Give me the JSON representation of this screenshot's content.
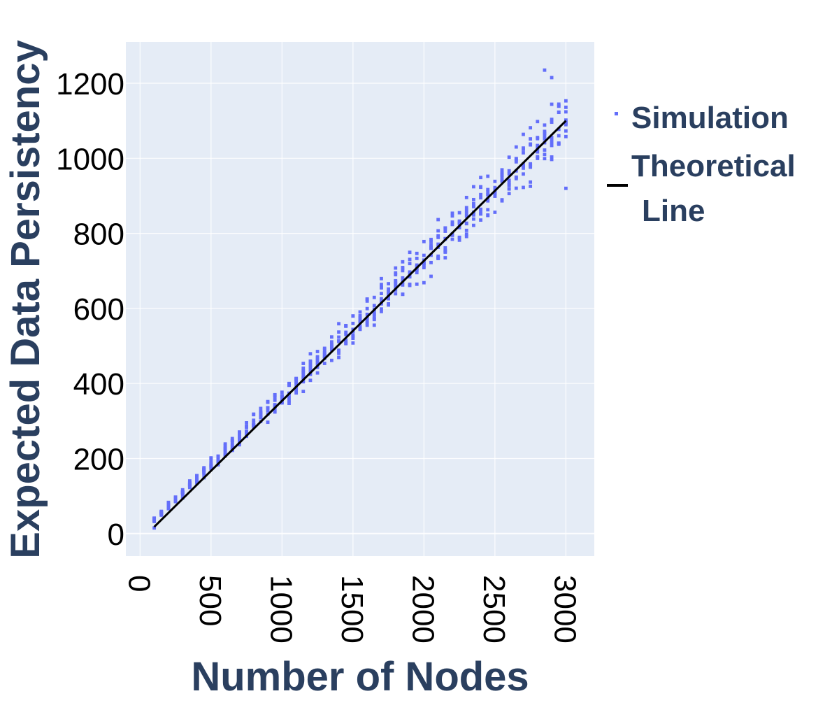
{
  "chart_data": {
    "type": "scatter",
    "title": "",
    "xlabel": "Number of Nodes",
    "ylabel": "Expected Data Persistency",
    "xlim": [
      -100,
      3200
    ],
    "ylim": [
      -60,
      1310
    ],
    "x_ticks": [
      0,
      500,
      1000,
      1500,
      2000,
      2500,
      3000
    ],
    "y_ticks": [
      0,
      200,
      400,
      600,
      800,
      1000,
      1200
    ],
    "grid": true,
    "x_tick_label_orientation": "rotated 90 degrees",
    "legend_placement": "right",
    "legend": {
      "simulation_label": "Simulation",
      "theoretical_label_line1": "Theoretical",
      "theoretical_label_line2": "Line"
    },
    "colors": {
      "plot_background": "#e5ecf6",
      "gridline": "#ffffff",
      "simulation_marker": "#636efa",
      "theoretical_line": "#000000",
      "axis_title": "#2a3f5f"
    },
    "series": [
      {
        "name": "Simulation",
        "kind": "scatter",
        "x_range": [
          100,
          3000
        ],
        "x_step": 50,
        "points_per_x": 10,
        "approx_trend_slope": 0.366,
        "spread_note": "scatter widens with x, from about ±5 near x=100 to about ±150 near x=3000",
        "extreme_points": [
          [
            100,
            15
          ],
          [
            2850,
            1235
          ],
          [
            2900,
            1215
          ],
          [
            3000,
            920
          ]
        ]
      },
      {
        "name": "Theoretical Line",
        "kind": "line",
        "x": [
          100,
          3000
        ],
        "y": [
          18,
          1100
        ]
      }
    ]
  }
}
